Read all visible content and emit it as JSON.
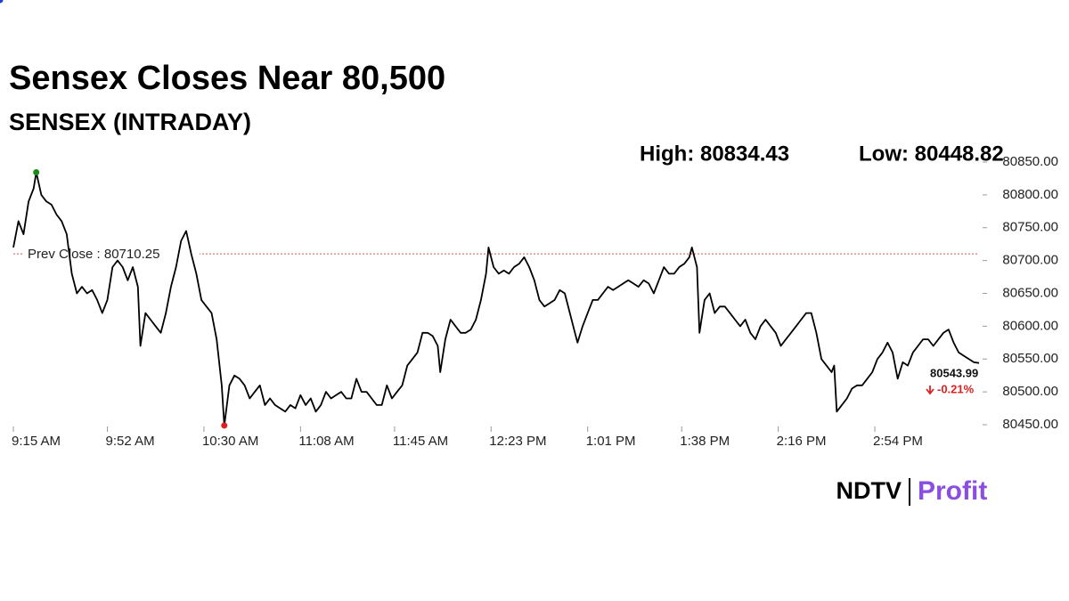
{
  "chart_data": {
    "type": "line",
    "title": "Sensex Closes Near 80,500",
    "subtitle": "SENSEX (INTRADAY)",
    "high_text": "High: 80834.43",
    "low_text": "Low: 80448.82",
    "annotation": {
      "text": "Prev Close : 80710.25",
      "value": 80710.25,
      "color": "#d9534f"
    },
    "change_label": "-0.21%",
    "logo": {
      "left": "NDTV",
      "right": "Profit"
    },
    "xlim": [
      0,
      380
    ],
    "xticks": [
      {
        "value": 0,
        "label": "9:15 AM"
      },
      {
        "value": 37,
        "label": "9:52 AM"
      },
      {
        "value": 75,
        "label": "10:30 AM"
      },
      {
        "value": 113,
        "label": "11:08 AM"
      },
      {
        "value": 150,
        "label": "11:45 AM"
      },
      {
        "value": 188,
        "label": "12:23 PM"
      },
      {
        "value": 226,
        "label": "1:01 PM"
      },
      {
        "value": 263,
        "label": "1:38 PM"
      },
      {
        "value": 301,
        "label": "2:16 PM"
      },
      {
        "value": 339,
        "label": "2:54 PM"
      }
    ],
    "ylim": [
      80450,
      80850
    ],
    "yticks": [
      {
        "value": 80450,
        "label": "80450.00"
      },
      {
        "value": 80500,
        "label": "80500.00"
      },
      {
        "value": 80550,
        "label": "80550.00"
      },
      {
        "value": 80600,
        "label": "80600.00"
      },
      {
        "value": 80650,
        "label": "80650.00"
      },
      {
        "value": 80700,
        "label": "80700.00"
      },
      {
        "value": 80750,
        "label": "80750.00"
      },
      {
        "value": 80800,
        "label": "80800.00"
      },
      {
        "value": 80850,
        "label": "80850.00"
      }
    ],
    "x": [
      0,
      2,
      4,
      6,
      8,
      9,
      11,
      13,
      15,
      17,
      19,
      21,
      23,
      25,
      27,
      29,
      31,
      33,
      35,
      37,
      39,
      41,
      43,
      45,
      47,
      49,
      50,
      52,
      54,
      56,
      58,
      60,
      62,
      64,
      66,
      68,
      70,
      72,
      74,
      76,
      78,
      80,
      82,
      83,
      85,
      87,
      89,
      91,
      93,
      95,
      97,
      99,
      101,
      103,
      105,
      107,
      109,
      111,
      113,
      115,
      117,
      119,
      121,
      123,
      125,
      127,
      129,
      131,
      133,
      135,
      137,
      139,
      141,
      143,
      145,
      147,
      149,
      151,
      153,
      155,
      157,
      159,
      161,
      163,
      165,
      167,
      168,
      170,
      172,
      174,
      176,
      178,
      180,
      182,
      184,
      186,
      187,
      189,
      191,
      193,
      195,
      197,
      199,
      201,
      203,
      205,
      207,
      209,
      211,
      213,
      215,
      217,
      219,
      221,
      222,
      224,
      226,
      228,
      230,
      232,
      234,
      236,
      238,
      240,
      242,
      244,
      246,
      248,
      250,
      252,
      254,
      256,
      258,
      260,
      262,
      264,
      266,
      267,
      269,
      270,
      272,
      274,
      276,
      278,
      280,
      282,
      284,
      286,
      288,
      290,
      292,
      294,
      296,
      298,
      300,
      302,
      304,
      306,
      308,
      310,
      312,
      314,
      316,
      318,
      320,
      322,
      323,
      324,
      326,
      328,
      330,
      332,
      334,
      336,
      338,
      340,
      342,
      344,
      346,
      348,
      350,
      352,
      354,
      356,
      358,
      360,
      362,
      364,
      366,
      368,
      370,
      372,
      374,
      376,
      378,
      380
    ],
    "series": [
      {
        "name": "SENSEX",
        "color": "#000000",
        "values": [
          80720,
          80760,
          80740,
          80790,
          80810,
          80834.43,
          80800,
          80790,
          80785,
          80770,
          80760,
          80740,
          80680,
          80650,
          80660,
          80650,
          80655,
          80640,
          80620,
          80640,
          80690,
          80700,
          80690,
          80670,
          80690,
          80660,
          80570,
          80620,
          80610,
          80600,
          80590,
          80620,
          80660,
          80690,
          80730,
          80745,
          80710,
          80680,
          80640,
          80630,
          80620,
          80580,
          80510,
          80448.82,
          80510,
          80525,
          80520,
          80510,
          80490,
          80500,
          80510,
          80480,
          80490,
          80480,
          80475,
          80470,
          80480,
          80475,
          80495,
          80480,
          80490,
          80470,
          80480,
          80500,
          80490,
          80495,
          80500,
          80490,
          80490,
          80520,
          80500,
          80500,
          80490,
          80480,
          80480,
          80510,
          80490,
          80500,
          80510,
          80540,
          80550,
          80560,
          80590,
          80590,
          80585,
          80570,
          80530,
          80580,
          80610,
          80600,
          80590,
          80590,
          80595,
          80610,
          80640,
          80680,
          80720,
          80690,
          80680,
          80685,
          80680,
          80690,
          80695,
          80705,
          80690,
          80670,
          80640,
          80630,
          80635,
          80640,
          80655,
          80650,
          80620,
          80590,
          80575,
          80600,
          80620,
          80640,
          80640,
          80650,
          80660,
          80655,
          80660,
          80665,
          80670,
          80665,
          80660,
          80670,
          80665,
          80650,
          80670,
          80690,
          80680,
          80680,
          80690,
          80695,
          80705,
          80720,
          80690,
          80590,
          80640,
          80650,
          80620,
          80630,
          80630,
          80620,
          80610,
          80600,
          80610,
          80590,
          80580,
          80600,
          80610,
          80600,
          80590,
          80570,
          80580,
          80590,
          80600,
          80610,
          80620,
          80620,
          80590,
          80550,
          80540,
          80530,
          80540,
          80470,
          80480,
          80490,
          80505,
          80510,
          80510,
          80520,
          80530,
          80550,
          80560,
          80575,
          80560,
          80520,
          80545,
          80540,
          80560,
          80570,
          80580,
          80580,
          80570,
          80580,
          80590,
          80595,
          80575,
          80560,
          80555,
          80550,
          80545,
          80543.99
        ]
      }
    ],
    "markers": [
      {
        "index": 5,
        "color": "#1a8a1a"
      },
      {
        "index": 43,
        "color": "#e02020"
      },
      {
        "index": 196,
        "color": "#1f3fd6"
      }
    ]
  }
}
